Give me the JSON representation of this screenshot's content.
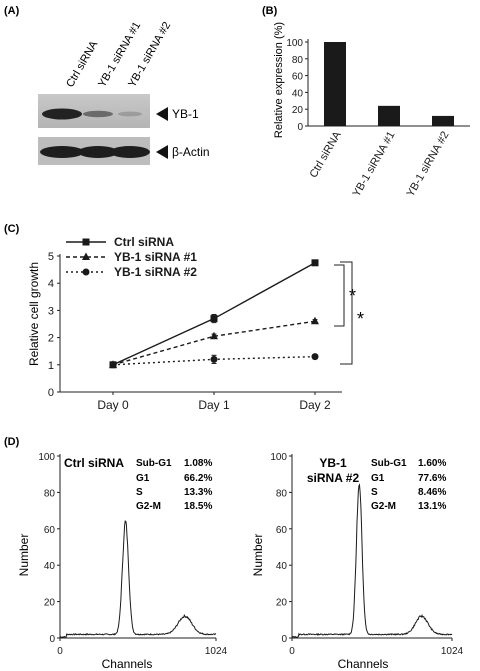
{
  "panel_a": {
    "label": "(A)",
    "lane_labels": [
      "Ctrl siRNA",
      "YB-1 siRNA #1",
      "YB-1 siRNA #2"
    ],
    "blot_labels": [
      "YB-1",
      "β-Actin"
    ]
  },
  "panel_b": {
    "label": "(B)"
  },
  "panel_c": {
    "label": "(C)",
    "significance": [
      "*",
      "*"
    ]
  },
  "panel_d": {
    "label": "(D)",
    "panels": [
      {
        "title": [
          "Ctrl siRNA"
        ],
        "stats": [
          {
            "name": "Sub-G1",
            "value": "1.08%"
          },
          {
            "name": "G1",
            "value": "66.2%"
          },
          {
            "name": "S",
            "value": "13.3%"
          },
          {
            "name": "G2-M",
            "value": "18.5%"
          }
        ]
      },
      {
        "title": [
          "YB-1",
          "siRNA #2"
        ],
        "stats": [
          {
            "name": "Sub-G1",
            "value": "1.60%"
          },
          {
            "name": "G1",
            "value": "77.6%"
          },
          {
            "name": "S",
            "value": "8.46%"
          },
          {
            "name": "G2-M",
            "value": "13.1%"
          }
        ]
      }
    ]
  },
  "chart_data": [
    {
      "type": "bar",
      "categories": [
        "Ctrl siRNA",
        "YB-1 siRNA #1",
        "YB-1 siRNA #2"
      ],
      "values": [
        100,
        24,
        12
      ],
      "ylabel": "Relative expression (%)",
      "ylim": [
        0,
        100
      ],
      "yticks": [
        0,
        20,
        40,
        60,
        80,
        100
      ],
      "color": "#1a1a1a"
    },
    {
      "type": "line",
      "categories": [
        "Day 0",
        "Day 1",
        "Day 2"
      ],
      "series": [
        {
          "name": "Ctrl siRNA",
          "values": [
            1.0,
            2.7,
            4.75
          ],
          "errors": [
            0.05,
            0.15,
            0.08
          ],
          "marker": "square",
          "dash": "solid"
        },
        {
          "name": "YB-1 siRNA #1",
          "values": [
            1.0,
            2.05,
            2.6
          ],
          "errors": [
            0.05,
            0.08,
            0.06
          ],
          "marker": "triangle",
          "dash": "dashed"
        },
        {
          "name": "YB-1 siRNA #2",
          "values": [
            1.0,
            1.2,
            1.3
          ],
          "errors": [
            0.05,
            0.15,
            0.06
          ],
          "marker": "circle",
          "dash": "dotted"
        }
      ],
      "ylabel": "Relative cell growth",
      "ylim": [
        0,
        5
      ],
      "yticks": [
        0,
        1,
        2,
        3,
        4,
        5
      ]
    },
    {
      "type": "area",
      "title": "Ctrl siRNA",
      "xlabel": "Channels",
      "ylabel": "Number",
      "xlim": [
        0,
        1024
      ],
      "ylim": [
        0,
        100
      ],
      "xticks": [
        0,
        1024
      ],
      "yticks": [
        0,
        20,
        40,
        60,
        80,
        100
      ],
      "peaks": [
        {
          "center": 2,
          "height": 0,
          "width": 1
        },
        {
          "center": 430,
          "height": 62,
          "width": 20
        },
        {
          "center": 820,
          "height": 10,
          "width": 45
        }
      ],
      "baseline": 2
    },
    {
      "type": "area",
      "title": "YB-1 siRNA #2",
      "xlabel": "Channels",
      "ylabel": "Number",
      "xlim": [
        0,
        1024
      ],
      "ylim": [
        0,
        100
      ],
      "xticks": [
        0,
        1024
      ],
      "yticks": [
        0,
        20,
        40,
        60,
        80,
        100
      ],
      "peaks": [
        {
          "center": 430,
          "height": 82,
          "width": 18
        },
        {
          "center": 830,
          "height": 10,
          "width": 40
        }
      ],
      "baseline": 2
    }
  ]
}
